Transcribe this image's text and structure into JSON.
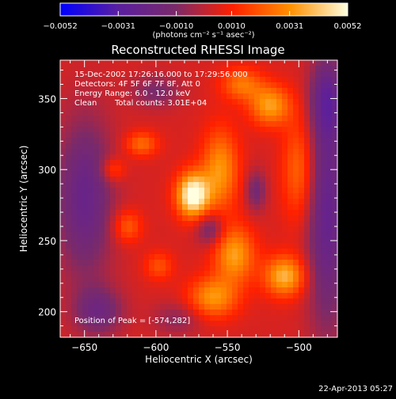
{
  "chart_data": {
    "type": "heatmap",
    "title": "Reconstructed RHESSI Image",
    "xlabel": "Heliocentric X (arcsec)",
    "ylabel": "Heliocentric Y (arcsec)",
    "xlim": [
      -667,
      -473
    ],
    "ylim": [
      182,
      377
    ],
    "xticks": [
      -650,
      -600,
      -550,
      -500
    ],
    "xtick_labels": [
      "−650",
      "−600",
      "−550",
      "−500"
    ],
    "yticks": [
      200,
      250,
      300,
      350
    ],
    "ytick_labels": [
      "200",
      "250",
      "300",
      "350"
    ],
    "colorbar": {
      "min": -0.0052,
      "max": 0.0052,
      "ticks": [
        -0.0052,
        -0.0031,
        -0.001,
        0.001,
        0.0031,
        0.0052
      ],
      "tick_labels": [
        "−0.0052",
        "−0.0031",
        "−0.0010",
        "0.0010",
        "0.0031",
        "0.0052"
      ],
      "unit_label": "(photons cm⁻² s⁻¹ asec⁻²)",
      "colors": [
        "#0000ff",
        "#5a1fa0",
        "#7a2a6a",
        "#ff2000",
        "#ff9000",
        "#ffffe0"
      ]
    },
    "annotations": {
      "time_range": "15-Dec-2002 17:26:16.000 to 17:29:56.000",
      "detectors": "Detectors: 4F 5F 6F 7F 8F, Att 0",
      "energy": "Energy Range: 6.0 - 12.0 keV",
      "clean": "Clean",
      "total_counts": "Total counts: 3.01E+04",
      "peak": "Position of Peak = [-574,282]"
    },
    "peak": {
      "x": -574,
      "y": 282,
      "value": 0.0052
    },
    "blobs": [
      {
        "x": -574,
        "y": 282,
        "sx": 8,
        "sy": 11,
        "value": 0.0052
      },
      {
        "x": -562,
        "y": 258,
        "sx": 7,
        "sy": 8,
        "value": -0.002
      },
      {
        "x": -555,
        "y": 300,
        "sx": 9,
        "sy": 20,
        "value": 0.0028
      },
      {
        "x": -545,
        "y": 240,
        "sx": 10,
        "sy": 14,
        "value": 0.003
      },
      {
        "x": -520,
        "y": 345,
        "sx": 10,
        "sy": 10,
        "value": 0.003
      },
      {
        "x": -510,
        "y": 225,
        "sx": 10,
        "sy": 10,
        "value": 0.0034
      },
      {
        "x": -560,
        "y": 210,
        "sx": 12,
        "sy": 10,
        "value": 0.0028
      },
      {
        "x": -500,
        "y": 300,
        "sx": 8,
        "sy": 25,
        "value": 0.002
      },
      {
        "x": -610,
        "y": 318,
        "sx": 8,
        "sy": 6,
        "value": 0.002
      },
      {
        "x": -620,
        "y": 260,
        "sx": 7,
        "sy": 8,
        "value": 0.0018
      },
      {
        "x": -630,
        "y": 300,
        "sx": 6,
        "sy": 6,
        "value": 0.0016
      },
      {
        "x": -598,
        "y": 232,
        "sx": 7,
        "sy": 7,
        "value": 0.0015
      },
      {
        "x": -540,
        "y": 360,
        "sx": 10,
        "sy": 8,
        "value": 0.0022
      },
      {
        "x": -650,
        "y": 280,
        "sx": 14,
        "sy": 40,
        "value": -0.0026
      },
      {
        "x": -480,
        "y": 270,
        "sx": 10,
        "sy": 60,
        "value": -0.0028
      },
      {
        "x": -480,
        "y": 350,
        "sx": 8,
        "sy": 20,
        "value": -0.0022
      },
      {
        "x": -640,
        "y": 200,
        "sx": 12,
        "sy": 12,
        "value": -0.002
      },
      {
        "x": -530,
        "y": 285,
        "sx": 5,
        "sy": 10,
        "value": -0.0018
      },
      {
        "x": -600,
        "y": 355,
        "sx": 12,
        "sy": 8,
        "value": -0.0015
      },
      {
        "x": -585,
        "y": 195,
        "sx": 12,
        "sy": 8,
        "value": -0.0012
      }
    ],
    "base_value": 0.0004
  },
  "footer": {
    "timestamp": "22-Apr-2013 05:27"
  }
}
